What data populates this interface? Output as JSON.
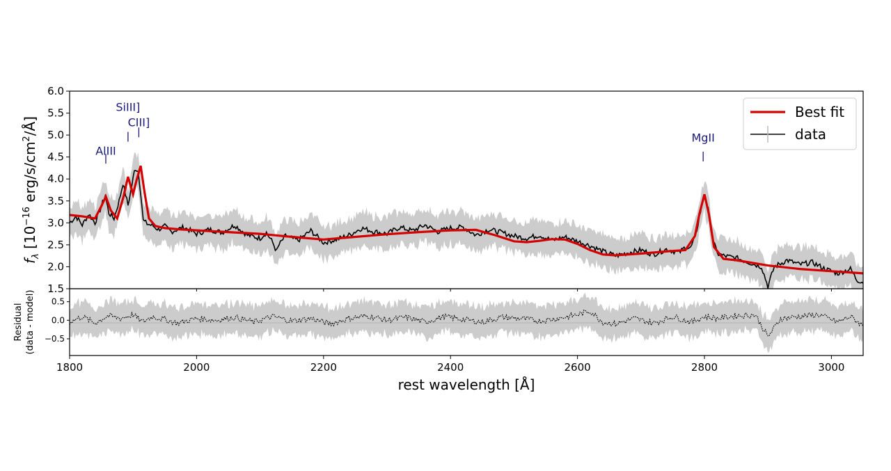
{
  "chart_data": {
    "type": "line",
    "colors": {
      "fit": "#d40000",
      "data": "#000000",
      "error": "#cccccc",
      "line_label": "#1a1a7a"
    },
    "main_panel": {
      "xlim": [
        1800,
        3050
      ],
      "ylim": [
        1.5,
        6.0
      ],
      "ylabel_prefix": "f",
      "ylabel_sub": "λ",
      "ylabel_open": " [10",
      "ylabel_exp": "−16",
      "ylabel_unit": " erg/s/cm",
      "ylabel_exp2": "2",
      "ylabel_close": "/Å]",
      "yticks": [
        1.5,
        2.0,
        2.5,
        3.0,
        3.5,
        4.0,
        4.5,
        5.0,
        5.5,
        6.0
      ],
      "ytick_labels": [
        "1.5",
        "2.0",
        "2.5",
        "3.0",
        "3.5",
        "4.0",
        "4.5",
        "5.0",
        "5.5",
        "6.0"
      ],
      "series": [
        {
          "name": "Best fit",
          "x": [
            1800,
            1820,
            1840,
            1850,
            1857,
            1865,
            1875,
            1885,
            1892,
            1900,
            1905,
            1912,
            1918,
            1925,
            1935,
            1950,
            1975,
            2000,
            2050,
            2100,
            2150,
            2200,
            2250,
            2300,
            2350,
            2400,
            2440,
            2470,
            2500,
            2520,
            2540,
            2560,
            2580,
            2600,
            2620,
            2640,
            2660,
            2700,
            2740,
            2770,
            2785,
            2792,
            2800,
            2807,
            2815,
            2830,
            2850,
            2900,
            2950,
            3000,
            3050
          ],
          "y": [
            3.18,
            3.15,
            3.1,
            3.38,
            3.6,
            3.28,
            3.1,
            3.6,
            4.05,
            3.65,
            3.95,
            4.3,
            3.7,
            3.1,
            2.93,
            2.88,
            2.85,
            2.83,
            2.79,
            2.75,
            2.68,
            2.62,
            2.68,
            2.74,
            2.79,
            2.83,
            2.84,
            2.72,
            2.58,
            2.56,
            2.59,
            2.63,
            2.62,
            2.52,
            2.38,
            2.28,
            2.26,
            2.3,
            2.35,
            2.38,
            2.7,
            3.2,
            3.65,
            3.2,
            2.45,
            2.18,
            2.15,
            2.03,
            1.95,
            1.9,
            1.85
          ]
        },
        {
          "name": "data",
          "x": [
            1800,
            1810,
            1820,
            1830,
            1840,
            1848,
            1856,
            1862,
            1870,
            1878,
            1884,
            1892,
            1898,
            1903,
            1908,
            1912,
            1916,
            1922,
            1930,
            1940,
            1950,
            1960,
            1980,
            2000,
            2020,
            2040,
            2060,
            2080,
            2100,
            2110,
            2120,
            2126,
            2130,
            2140,
            2160,
            2180,
            2200,
            2220,
            2240,
            2260,
            2280,
            2300,
            2320,
            2340,
            2360,
            2380,
            2400,
            2420,
            2440,
            2460,
            2480,
            2500,
            2520,
            2540,
            2560,
            2580,
            2600,
            2620,
            2640,
            2660,
            2680,
            2700,
            2720,
            2740,
            2760,
            2770,
            2778,
            2786,
            2793,
            2800,
            2806,
            2812,
            2820,
            2830,
            2850,
            2870,
            2890,
            2900,
            2910,
            2930,
            2950,
            2970,
            2990,
            3010,
            3030,
            3040,
            3050
          ],
          "y": [
            3.0,
            3.15,
            2.95,
            3.2,
            3.0,
            3.3,
            3.62,
            3.22,
            3.1,
            3.5,
            3.9,
            3.4,
            3.85,
            4.25,
            4.18,
            3.7,
            3.05,
            2.98,
            2.94,
            2.85,
            2.92,
            2.8,
            2.9,
            2.75,
            2.85,
            2.78,
            2.95,
            2.72,
            2.65,
            2.78,
            2.55,
            2.35,
            2.5,
            2.7,
            2.6,
            2.82,
            2.55,
            2.62,
            2.72,
            2.88,
            2.8,
            2.75,
            2.9,
            2.82,
            2.95,
            2.8,
            2.88,
            2.9,
            2.72,
            2.85,
            2.78,
            2.7,
            2.65,
            2.72,
            2.6,
            2.68,
            2.58,
            2.48,
            2.35,
            2.25,
            2.32,
            2.38,
            2.28,
            2.4,
            2.32,
            2.45,
            2.42,
            2.7,
            3.2,
            3.65,
            3.3,
            2.7,
            2.3,
            2.25,
            2.2,
            2.1,
            2.0,
            1.55,
            2.0,
            2.15,
            2.05,
            2.1,
            1.95,
            1.85,
            1.95,
            1.7,
            1.65
          ]
        }
      ]
    },
    "residual_panel": {
      "xlim": [
        1800,
        3050
      ],
      "ylim": [
        -0.95,
        0.85
      ],
      "ylabel_line1": "Residual",
      "ylabel_line2": "(data - model)",
      "yticks": [
        -0.5,
        0.0,
        0.5
      ],
      "ytick_labels": [
        "−0.5",
        "0.0",
        "0.5"
      ],
      "series": {
        "name": "residual",
        "x": [
          1800,
          1820,
          1840,
          1860,
          1880,
          1900,
          1915,
          1930,
          1950,
          1970,
          2000,
          2030,
          2060,
          2090,
          2120,
          2150,
          2180,
          2210,
          2240,
          2270,
          2300,
          2330,
          2360,
          2390,
          2420,
          2450,
          2480,
          2510,
          2540,
          2570,
          2600,
          2620,
          2640,
          2660,
          2690,
          2720,
          2750,
          2780,
          2800,
          2820,
          2850,
          2880,
          2900,
          2920,
          2950,
          2980,
          3010,
          3030,
          3050
        ],
        "y": [
          -0.05,
          0.1,
          -0.08,
          0.12,
          0.05,
          0.15,
          -0.05,
          0.1,
          0.02,
          -0.08,
          0.05,
          0.0,
          0.08,
          -0.05,
          0.1,
          -0.02,
          0.05,
          -0.1,
          0.05,
          0.12,
          0.0,
          0.08,
          -0.05,
          0.1,
          0.02,
          -0.05,
          0.08,
          0.05,
          -0.02,
          0.05,
          0.15,
          0.25,
          -0.05,
          -0.1,
          0.05,
          -0.08,
          0.1,
          -0.05,
          0.1,
          0.05,
          0.12,
          0.15,
          -0.45,
          0.05,
          0.1,
          0.15,
          -0.05,
          0.1,
          -0.15
        ]
      }
    },
    "x_axis": {
      "label": "rest wavelength [Å]",
      "ticks": [
        1800,
        2000,
        2200,
        2400,
        2600,
        2800,
        3000
      ],
      "tick_labels": [
        "1800",
        "2000",
        "2200",
        "2400",
        "2600",
        "2800",
        "3000"
      ]
    },
    "legend": {
      "position": "top-right",
      "entries": [
        "Best fit",
        "data"
      ]
    },
    "line_labels": [
      {
        "text": "AlIII",
        "x": 1857,
        "y": 4.35,
        "label_y": 4.55
      },
      {
        "text": "SiIII]",
        "x": 1892,
        "y": 4.85,
        "label_y": 5.55
      },
      {
        "text": "CIII]",
        "x": 1909,
        "y": 4.95,
        "label_y": 5.2
      },
      {
        "text": "MgII",
        "x": 2798,
        "y": 4.4,
        "label_y": 4.85
      }
    ]
  }
}
